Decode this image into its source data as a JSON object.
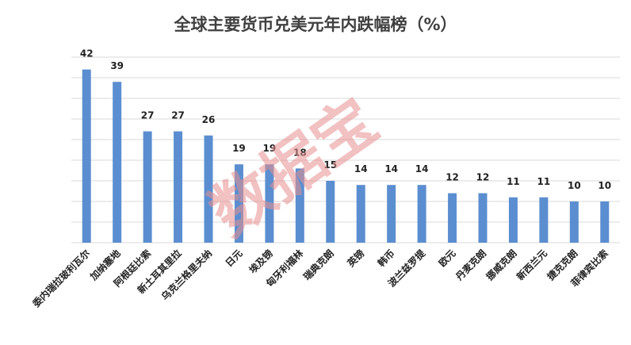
{
  "chart_data": {
    "type": "bar",
    "title": "全球主要货币兑美元年内跌幅榜（%）",
    "xlabel": "",
    "ylabel": "",
    "ylim": [
      0,
      45
    ],
    "grid": true,
    "legend": "none",
    "bar_color": "#5b8ed0",
    "grid_color": "#d9d9d9",
    "categories": [
      "委内瑞拉玻利瓦尔",
      "加纳塞地",
      "阿根廷比索",
      "新土耳其里拉",
      "乌克兰格里夫纳",
      "日元",
      "埃及镑",
      "匈牙利福林",
      "瑞典克朗",
      "英镑",
      "韩币",
      "波兰兹罗提",
      "欧元",
      "丹麦克朗",
      "挪威克朗",
      "新西兰元",
      "捷克克朗",
      "菲律宾比索"
    ],
    "values": [
      42,
      39,
      27,
      27,
      26,
      19,
      19,
      18,
      15,
      14,
      14,
      14,
      12,
      12,
      11,
      11,
      10,
      10
    ]
  },
  "watermark": {
    "text": "数据宝",
    "color": "#e89090"
  }
}
